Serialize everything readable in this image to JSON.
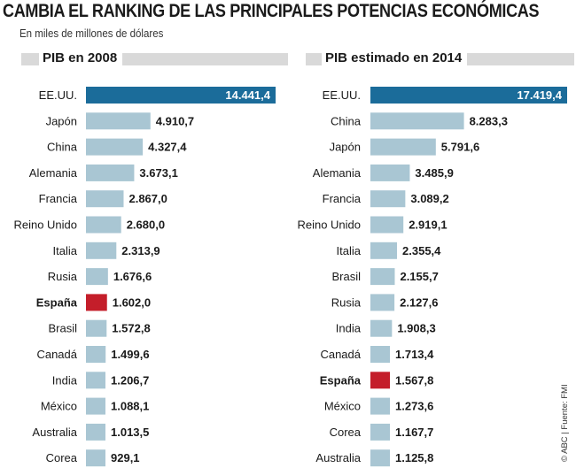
{
  "header": {
    "title": "CAMBIA EL RANKING DE LAS PRINCIPALES POTENCIAS ECONÓMICAS",
    "subtitle": "En miles de millones de dólares"
  },
  "source": "© ABC | Fuente: FMI",
  "colors": {
    "top_bar": "#1b6c9a",
    "highlight_bar": "#c41e2a",
    "default_bar": "#a9c6d3",
    "header_rule": "#d9d9d9"
  },
  "chart_data": [
    {
      "type": "bar",
      "orientation": "horizontal",
      "title": "PIB en 2008",
      "categories": [
        "EE.UU.",
        "Japón",
        "China",
        "Alemania",
        "Francia",
        "Reino Unido",
        "Italia",
        "Rusia",
        "España",
        "Brasil",
        "Canadá",
        "India",
        "México",
        "Australia",
        "Corea"
      ],
      "values": [
        14441.4,
        4910.7,
        4327.4,
        3673.1,
        2867.0,
        2680.0,
        2313.9,
        1676.6,
        1602.0,
        1572.8,
        1499.6,
        1206.7,
        1088.1,
        1013.5,
        929.1
      ],
      "labels": [
        "14.441,4",
        "4.910,7",
        "4.327,4",
        "3.673,1",
        "2.867,0",
        "2.680,0",
        "2.313,9",
        "1.676,6",
        "1.602,0",
        "1.572,8",
        "1.499,6",
        "1.206,7",
        "1.088,1",
        "1.013,5",
        "929,1"
      ],
      "highlight": [
        "EE.UU.",
        "España"
      ],
      "xlim": [
        0,
        14441.4
      ]
    },
    {
      "type": "bar",
      "orientation": "horizontal",
      "title": "PIB estimado en 2014",
      "categories": [
        "EE.UU.",
        "China",
        "Japón",
        "Alemania",
        "Francia",
        "Reino Unido",
        "Italia",
        "Brasil",
        "Rusia",
        "India",
        "Canadá",
        "España",
        "México",
        "Corea",
        "Australia"
      ],
      "values": [
        17419.4,
        8283.3,
        5791.6,
        3485.9,
        3089.2,
        2919.1,
        2355.4,
        2155.7,
        2127.6,
        1908.3,
        1713.4,
        1567.8,
        1273.6,
        1167.7,
        1125.8
      ],
      "labels": [
        "17.419,4",
        "8.283,3",
        "5.791,6",
        "3.485,9",
        "3.089,2",
        "2.919,1",
        "2.355,4",
        "2.155,7",
        "2.127,6",
        "1.908,3",
        "1.713,4",
        "1.567,8",
        "1.273,6",
        "1.167,7",
        "1.125,8"
      ],
      "highlight": [
        "EE.UU.",
        "España"
      ],
      "xlim": [
        0,
        17419.4
      ]
    }
  ]
}
